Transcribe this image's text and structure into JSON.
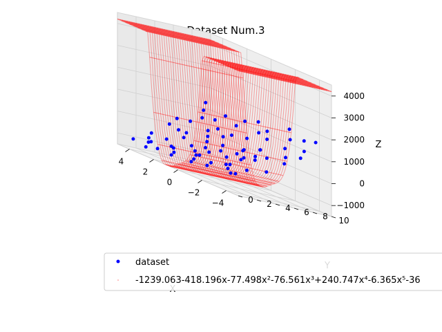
{
  "chart_data": {
    "type": "scatter",
    "title": "Dataset Num.3",
    "xlabel": "X",
    "ylabel": "Y",
    "zlabel": "Z",
    "x_ticks": [
      "−4",
      "−2",
      "0",
      "2",
      "4"
    ],
    "y_ticks": [
      "0",
      "2",
      "4",
      "6",
      "8",
      "10"
    ],
    "z_ticks": [
      "−1000",
      "0",
      "1000",
      "2000",
      "3000",
      "4000"
    ],
    "xlim": [
      -5,
      5
    ],
    "ylim": [
      0,
      10
    ],
    "zlim": [
      -1500,
      4500
    ],
    "grid": true,
    "legend_position": "lower-center",
    "colors": {
      "dataset": "#0000ff",
      "surface": "#ff0000",
      "pane": "#f2f2f2",
      "grid": "#d0d0d0"
    },
    "series": [
      {
        "name": "dataset",
        "marker": "dot"
      },
      {
        "name": "-1239.063-418.196x-77.498x²-76.561x³+240.747x⁴-6.365x⁵-36",
        "marker": "surface"
      }
    ],
    "points": [
      [
        -4.6,
        7.2,
        800
      ],
      [
        -4.2,
        8.1,
        1100
      ],
      [
        -3.9,
        6.5,
        600
      ],
      [
        -3.5,
        9.0,
        1500
      ],
      [
        -3.2,
        5.4,
        300
      ],
      [
        -3.0,
        7.6,
        900
      ],
      [
        -2.7,
        4.8,
        200
      ],
      [
        -2.5,
        8.8,
        1300
      ],
      [
        -2.2,
        6.0,
        500
      ],
      [
        -1.9,
        9.5,
        1700
      ],
      [
        -1.6,
        5.0,
        -100
      ],
      [
        -1.4,
        7.0,
        400
      ],
      [
        -1.1,
        3.8,
        -300
      ],
      [
        -0.9,
        8.4,
        900
      ],
      [
        -0.6,
        6.2,
        100
      ],
      [
        -0.3,
        9.2,
        1200
      ],
      [
        0.0,
        4.6,
        -200
      ],
      [
        0.3,
        7.8,
        600
      ],
      [
        0.6,
        5.6,
        0
      ],
      [
        0.9,
        9.8,
        1400
      ],
      [
        1.2,
        3.4,
        -600
      ],
      [
        1.5,
        6.8,
        300
      ],
      [
        1.8,
        8.6,
        900
      ],
      [
        2.1,
        4.2,
        -500
      ],
      [
        2.4,
        7.4,
        500
      ],
      [
        2.7,
        2.8,
        -800
      ],
      [
        3.0,
        9.0,
        1100
      ],
      [
        3.3,
        5.2,
        -100
      ],
      [
        3.6,
        1.8,
        -900
      ],
      [
        3.9,
        6.4,
        400
      ],
      [
        4.2,
        8.2,
        1000
      ],
      [
        4.5,
        3.0,
        -600
      ],
      [
        4.7,
        6.0,
        300
      ],
      [
        -4.4,
        3.8,
        -200
      ],
      [
        -3.7,
        2.6,
        -400
      ],
      [
        -2.9,
        1.6,
        -600
      ],
      [
        -2.0,
        3.0,
        -500
      ],
      [
        -1.2,
        2.0,
        -700
      ],
      [
        -0.4,
        1.2,
        -800
      ],
      [
        0.5,
        2.6,
        -700
      ],
      [
        1.4,
        1.4,
        -900
      ],
      [
        2.3,
        0.8,
        -1000
      ],
      [
        3.2,
        1.0,
        -900
      ],
      [
        -4.8,
        5.2,
        400
      ],
      [
        -3.3,
        4.0,
        100
      ],
      [
        -2.3,
        2.2,
        -500
      ],
      [
        -1.0,
        5.8,
        200
      ],
      [
        0.2,
        3.6,
        -400
      ],
      [
        1.0,
        0.6,
        -1000
      ],
      [
        2.0,
        5.8,
        100
      ],
      [
        2.9,
        4.4,
        -300
      ],
      [
        3.7,
        7.4,
        700
      ],
      [
        4.4,
        4.8,
        0
      ],
      [
        -4.0,
        9.6,
        1600
      ],
      [
        -2.6,
        3.4,
        -100
      ],
      [
        -0.8,
        0.4,
        -900
      ],
      [
        0.8,
        4.0,
        -300
      ],
      [
        1.7,
        9.4,
        1200
      ],
      [
        2.6,
        6.6,
        300
      ],
      [
        3.4,
        3.2,
        -600
      ],
      [
        4.0,
        0.4,
        -1000
      ],
      [
        4.8,
        9.2,
        1300
      ],
      [
        -3.6,
        1.0,
        -700
      ],
      [
        -1.8,
        0.8,
        -800
      ],
      [
        0.1,
        8.8,
        1000
      ],
      [
        1.1,
        7.2,
        500
      ],
      [
        2.2,
        2.4,
        -800
      ],
      [
        3.1,
        8.0,
        800
      ],
      [
        3.8,
        5.0,
        -100
      ],
      [
        -4.3,
        0.6,
        -600
      ],
      [
        -1.5,
        4.4,
        0
      ],
      [
        -0.1,
        2.2,
        -600
      ],
      [
        1.6,
        5.2,
        -100
      ],
      [
        2.8,
        0.2,
        -1100
      ],
      [
        4.1,
        2.2,
        -800
      ]
    ],
    "surface_coeffs": [
      -1239.063,
      -418.196,
      -77.498,
      -76.561,
      240.747,
      -6.365,
      -36
    ]
  }
}
